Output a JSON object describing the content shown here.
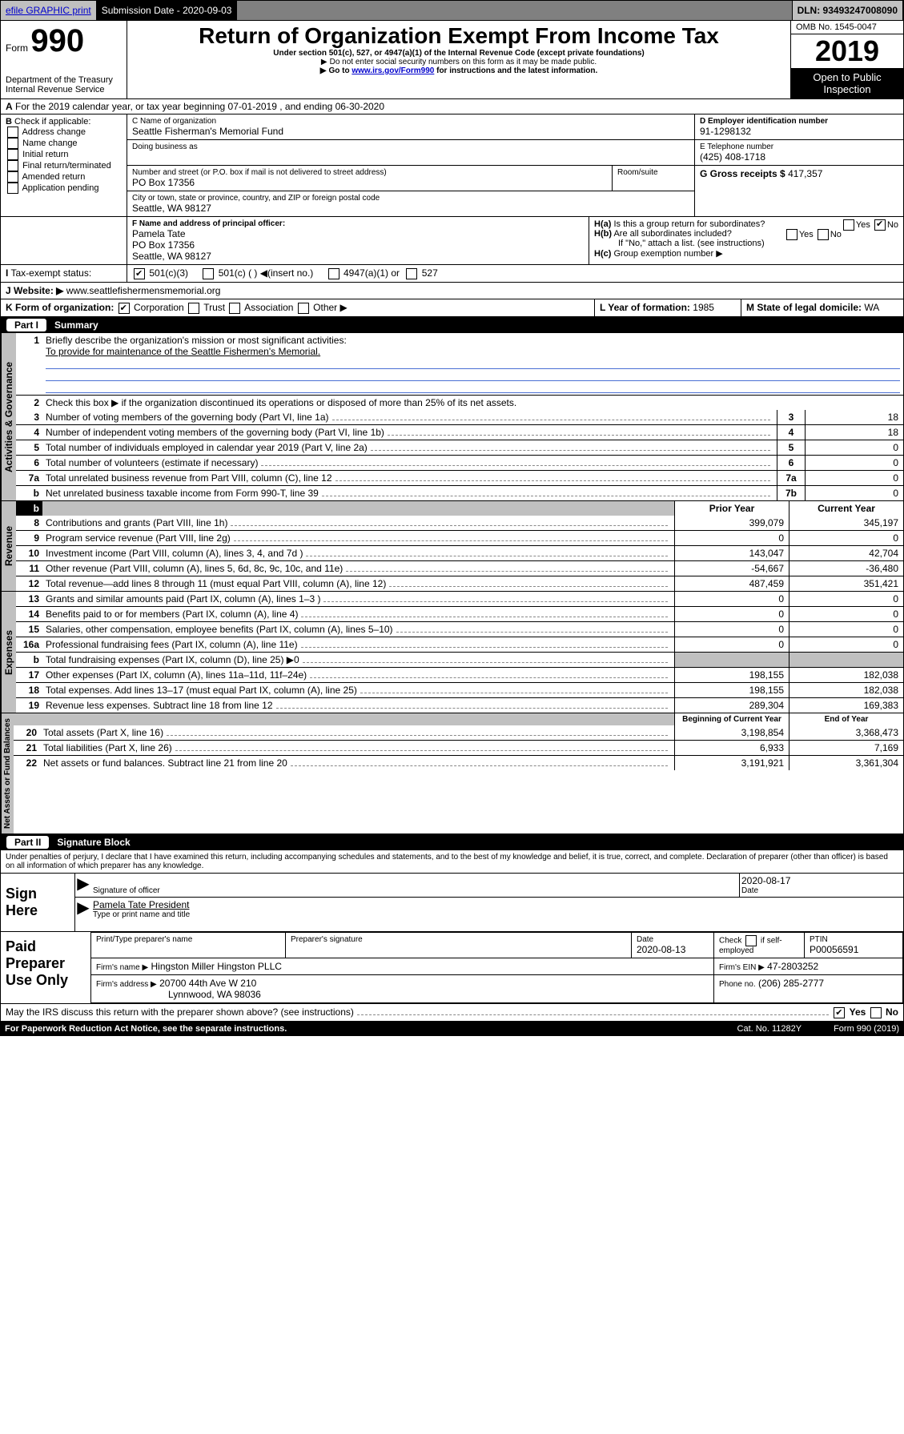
{
  "topbar": {
    "efile": "efile GRAPHIC print",
    "sub_label": "Submission Date - 2020-09-03",
    "dln": "DLN: 93493247008090"
  },
  "header": {
    "form_label": "Form",
    "form_num": "990",
    "dept": "Department of the Treasury\nInternal Revenue Service",
    "title": "Return of Organization Exempt From Income Tax",
    "subtitle": "Under section 501(c), 527, or 4947(a)(1) of the Internal Revenue Code (except private foundations)",
    "note1": "Do not enter social security numbers on this form as it may be made public.",
    "note2_pre": "Go to ",
    "note2_link": "www.irs.gov/Form990",
    "note2_post": " for instructions and the latest information.",
    "omb": "OMB No. 1545-0047",
    "year": "2019",
    "inspection": "Open to Public Inspection"
  },
  "A_line": "For the 2019 calendar year, or tax year beginning 07-01-2019   , and ending 06-30-2020",
  "B": {
    "label": "Check if applicable:",
    "opts": [
      "Address change",
      "Name change",
      "Initial return",
      "Final return/terminated",
      "Amended return",
      "Application pending"
    ]
  },
  "C": {
    "name_label": "C Name of organization",
    "name": "Seattle Fisherman's Memorial Fund",
    "dba_label": "Doing business as",
    "addr_label": "Number and street (or P.O. box if mail is not delivered to street address)",
    "room_label": "Room/suite",
    "addr": "PO Box 17356",
    "city_label": "City or town, state or province, country, and ZIP or foreign postal code",
    "city": "Seattle, WA  98127"
  },
  "D": {
    "label": "D Employer identification number",
    "val": "91-1298132"
  },
  "E": {
    "label": "E Telephone number",
    "val": "(425) 408-1718"
  },
  "G": {
    "label": "G Gross receipts $",
    "val": "417,357"
  },
  "F": {
    "label": "F  Name and address of principal officer:",
    "name": "Pamela Tate",
    "addr1": "PO Box 17356",
    "addr2": "Seattle, WA  98127"
  },
  "H": {
    "a": "Is this a group return for subordinates?",
    "b": "Are all subordinates included?",
    "b_note": "If \"No,\" attach a list. (see instructions)",
    "c": "Group exemption number ▶",
    "yes": "Yes",
    "no": "No"
  },
  "I": {
    "label": "Tax-exempt status:",
    "opts": [
      "501(c)(3)",
      "501(c) (  ) ◀(insert no.)",
      "4947(a)(1) or",
      "527"
    ]
  },
  "J": {
    "label": "Website: ▶",
    "val": "www.seattlefishermensmemorial.org"
  },
  "K": {
    "label": "K Form of organization:",
    "opts": [
      "Corporation",
      "Trust",
      "Association",
      "Other ▶"
    ]
  },
  "L": {
    "label": "L Year of formation:",
    "val": "1985"
  },
  "M": {
    "label": "M State of legal domicile:",
    "val": "WA"
  },
  "part1": {
    "label": "Part I",
    "title": "Summary"
  },
  "summary": {
    "q1": "Briefly describe the organization's mission or most significant activities:",
    "q1a": "To provide for maintenance of the Seattle Fishermen's Memorial.",
    "q2": "Check this box ▶    if the organization discontinued its operations or disposed of more than 25% of its net assets.",
    "lines_gov": [
      {
        "n": "3",
        "t": "Number of voting members of the governing body (Part VI, line 1a)",
        "box": "3",
        "v": "18"
      },
      {
        "n": "4",
        "t": "Number of independent voting members of the governing body (Part VI, line 1b)",
        "box": "4",
        "v": "18"
      },
      {
        "n": "5",
        "t": "Total number of individuals employed in calendar year 2019 (Part V, line 2a)",
        "box": "5",
        "v": "0"
      },
      {
        "n": "6",
        "t": "Total number of volunteers (estimate if necessary)",
        "box": "6",
        "v": "0"
      },
      {
        "n": "7a",
        "t": "Total unrelated business revenue from Part VIII, column (C), line 12",
        "box": "7a",
        "v": "0"
      },
      {
        "n": "b",
        "t": "Net unrelated business taxable income from Form 990-T, line 39",
        "box": "7b",
        "v": "0"
      }
    ],
    "py": "Prior Year",
    "cy": "Current Year",
    "rev": [
      {
        "n": "8",
        "t": "Contributions and grants (Part VIII, line 1h)",
        "p": "399,079",
        "c": "345,197"
      },
      {
        "n": "9",
        "t": "Program service revenue (Part VIII, line 2g)",
        "p": "0",
        "c": "0"
      },
      {
        "n": "10",
        "t": "Investment income (Part VIII, column (A), lines 3, 4, and 7d )",
        "p": "143,047",
        "c": "42,704"
      },
      {
        "n": "11",
        "t": "Other revenue (Part VIII, column (A), lines 5, 6d, 8c, 9c, 10c, and 11e)",
        "p": "-54,667",
        "c": "-36,480"
      },
      {
        "n": "12",
        "t": "Total revenue—add lines 8 through 11 (must equal Part VIII, column (A), line 12)",
        "p": "487,459",
        "c": "351,421"
      }
    ],
    "exp": [
      {
        "n": "13",
        "t": "Grants and similar amounts paid (Part IX, column (A), lines 1–3 )",
        "p": "0",
        "c": "0"
      },
      {
        "n": "14",
        "t": "Benefits paid to or for members (Part IX, column (A), line 4)",
        "p": "0",
        "c": "0"
      },
      {
        "n": "15",
        "t": "Salaries, other compensation, employee benefits (Part IX, column (A), lines 5–10)",
        "p": "0",
        "c": "0"
      },
      {
        "n": "16a",
        "t": "Professional fundraising fees (Part IX, column (A), line 11e)",
        "p": "0",
        "c": "0"
      },
      {
        "n": "b",
        "t": "Total fundraising expenses (Part IX, column (D), line 25) ▶0",
        "p": "",
        "c": "",
        "grey": true
      },
      {
        "n": "17",
        "t": "Other expenses (Part IX, column (A), lines 11a–11d, 11f–24e)",
        "p": "198,155",
        "c": "182,038"
      },
      {
        "n": "18",
        "t": "Total expenses. Add lines 13–17 (must equal Part IX, column (A), line 25)",
        "p": "198,155",
        "c": "182,038"
      },
      {
        "n": "19",
        "t": "Revenue less expenses. Subtract line 18 from line 12",
        "p": "289,304",
        "c": "169,383"
      }
    ],
    "boy": "Beginning of Current Year",
    "eoy": "End of Year",
    "net": [
      {
        "n": "20",
        "t": "Total assets (Part X, line 16)",
        "p": "3,198,854",
        "c": "3,368,473"
      },
      {
        "n": "21",
        "t": "Total liabilities (Part X, line 26)",
        "p": "6,933",
        "c": "7,169"
      },
      {
        "n": "22",
        "t": "Net assets or fund balances. Subtract line 21 from line 20",
        "p": "3,191,921",
        "c": "3,361,304"
      }
    ]
  },
  "vlabels": {
    "gov": "Activities & Governance",
    "rev": "Revenue",
    "exp": "Expenses",
    "net": "Net Assets or Fund Balances"
  },
  "part2": {
    "label": "Part II",
    "title": "Signature Block"
  },
  "perjury": "Under penalties of perjury, I declare that I have examined this return, including accompanying schedules and statements, and to the best of my knowledge and belief, it is true, correct, and complete. Declaration of preparer (other than officer) is based on all information of which preparer has any knowledge.",
  "sign": {
    "here": "Sign Here",
    "sig_label": "Signature of officer",
    "date": "2020-08-17",
    "date_label": "Date",
    "name": "Pamela Tate President",
    "name_label": "Type or print name and title"
  },
  "paid": {
    "here": "Paid Preparer Use Only",
    "col1": "Print/Type preparer's name",
    "col2": "Preparer's signature",
    "col3_label": "Date",
    "col3": "2020-08-13",
    "col4_label": "Check",
    "col4_txt": "if self-employed",
    "col5_label": "PTIN",
    "col5": "P00056591",
    "firm_label": "Firm's name   ▶",
    "firm": "Hingston Miller Hingston PLLC",
    "ein_label": "Firm's EIN ▶",
    "ein": "47-2803252",
    "addr_label": "Firm's address ▶",
    "addr1": "20700 44th Ave W 210",
    "addr2": "Lynnwood, WA  98036",
    "phone_label": "Phone no.",
    "phone": "(206) 285-2777"
  },
  "discuss": "May the IRS discuss this return with the preparer shown above? (see instructions)",
  "footer": {
    "paperwork": "For Paperwork Reduction Act Notice, see the separate instructions.",
    "cat": "Cat. No. 11282Y",
    "form": "Form 990 (2019)"
  }
}
